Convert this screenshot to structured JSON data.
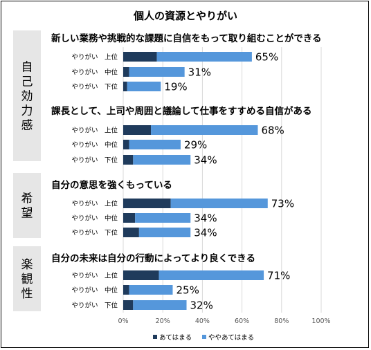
{
  "chart_data": {
    "type": "bar",
    "orientation": "horizontal",
    "stacked": true,
    "title": "個人の資源とやりがい",
    "xlim": [
      0,
      100
    ],
    "x_ticks": [
      "0%",
      "20%",
      "40%",
      "60%",
      "80%",
      "100%"
    ],
    "legend": {
      "placement": "bottom",
      "entries": [
        {
          "name": "あてはまる",
          "color": "#1f3b5c"
        },
        {
          "name": "ややあてはまる",
          "color": "#5597db"
        }
      ]
    },
    "groups": [
      {
        "label": "自己効力感",
        "questions": [
          {
            "text": "新しい業務や挑戦的な課題に自信をもって取り組むことができる",
            "rows": [
              {
                "label": "やりがい　上位",
                "apply": 17,
                "somewhat": 48,
                "total_label": "65%"
              },
              {
                "label": "やりがい　中位",
                "apply": 3,
                "somewhat": 28,
                "total_label": "31%"
              },
              {
                "label": "やりがい　下位",
                "apply": 2,
                "somewhat": 17,
                "total_label": "19%"
              }
            ]
          },
          {
            "text": "課長として、上司や周囲と議論して仕事をすすめる自信がある",
            "rows": [
              {
                "label": "やりがい　上位",
                "apply": 14,
                "somewhat": 54,
                "total_label": "68%"
              },
              {
                "label": "やりがい　中位",
                "apply": 3,
                "somewhat": 26,
                "total_label": "29%"
              },
              {
                "label": "やりがい　下位",
                "apply": 5,
                "somewhat": 29,
                "total_label": "34%"
              }
            ]
          }
        ]
      },
      {
        "label": "希望",
        "questions": [
          {
            "text": "自分の意思を強くもっている",
            "rows": [
              {
                "label": "やりがい　上位",
                "apply": 24,
                "somewhat": 49,
                "total_label": "73%"
              },
              {
                "label": "やりがい　中位",
                "apply": 6,
                "somewhat": 28,
                "total_label": "34%"
              },
              {
                "label": "やりがい　下位",
                "apply": 8,
                "somewhat": 26,
                "total_label": "34%"
              }
            ]
          }
        ]
      },
      {
        "label": "楽観性",
        "questions": [
          {
            "text": "自分の未来は自分の行動によってより良くできる",
            "rows": [
              {
                "label": "やりがい　上位",
                "apply": 18,
                "somewhat": 53,
                "total_label": "71%"
              },
              {
                "label": "やりがい　中位",
                "apply": 3,
                "somewhat": 22,
                "total_label": "25%"
              },
              {
                "label": "やりがい　下位",
                "apply": 5,
                "somewhat": 27,
                "total_label": "32%"
              }
            ]
          }
        ]
      }
    ]
  }
}
